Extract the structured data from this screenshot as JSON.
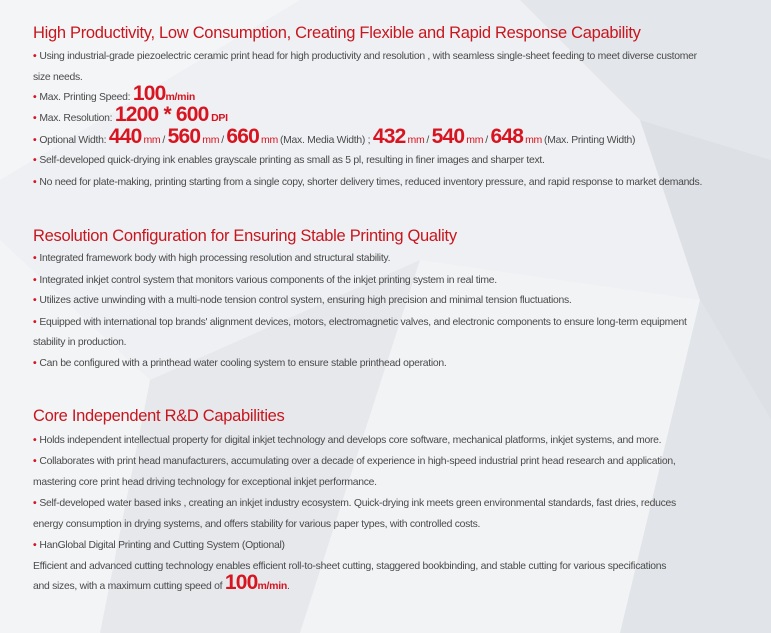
{
  "s1": {
    "title": "High Productivity, Low Consumption, Creating Flexible and Rapid Response Capability",
    "i1a": "Using industrial-grade piezoelectric ceramic print head for high productivity and  resolution , with seamless single-sheet feeding to meet diverse customer",
    "i1b": "size needs.",
    "speed_label": "Max. Printing Speed:",
    "speed_value": "100",
    "speed_unit": "m/min",
    "res_label": "Max. Resolution:",
    "res_value": "1200 * 600",
    "res_unit": "DPI",
    "width_label": "Optional Width:",
    "media_widths": [
      "440",
      "560",
      "660"
    ],
    "printing_widths": [
      "432",
      "540",
      "648"
    ],
    "mm": "mm",
    "slash": "/",
    "media_note": "(Max. Media Width) ;",
    "printing_note": "(Max. Printing Width)",
    "i5": "Self-developed quick-drying ink enables grayscale printing as small as 5 pl, resulting in finer images and sharper text.",
    "i6": "No need for plate-making, printing starting from a single copy, shorter delivery times, reduced inventory pressure, and rapid response to market demands."
  },
  "s2": {
    "title": "Resolution Configuration for Ensuring Stable Printing Quality",
    "i1": "Integrated framework body with high processing resolution and structural stability.",
    "i2": "Integrated inkjet control system that monitors various components of the inkjet printing system in real time.",
    "i3": "Utilizes active unwinding with a multi-node tension control system, ensuring high precision and minimal tension fluctuations.",
    "i4a": "Equipped with international top brands' alignment devices, motors, electromagnetic valves, and electronic components to ensure long-term equipment",
    "i4b": "stability in production.",
    "i5": "Can be configured with a printhead water cooling system to ensure stable printhead operation."
  },
  "s3": {
    "title": "Core Independent R&D Capabilities",
    "i1": "Holds independent intellectual property for digital inkjet technology and develops core software, mechanical platforms, inkjet systems, and more.",
    "i2a": "Collaborates with print head manufacturers, accumulating over a decade of experience in high-speed industrial print head research and application,",
    "i2b": "mastering core print head driving technology for exceptional inkjet performance.",
    "i3a": "Self-developed water based inks , creating an inkjet industry ecosystem. Quick-drying ink meets green environmental standards, fast dries, reduces",
    "i3b": "energy consumption in drying systems, and offers stability for various paper types, with controlled costs.",
    "i4": "HanGlobal Digital Printing and Cutting System (Optional)",
    "p1": "Efficient and advanced cutting technology enables efficient roll-to-sheet cutting, staggered bookbinding, and stable cutting for various specifications",
    "p2": "and sizes, with a maximum cutting speed of",
    "cut_value": "100",
    "cut_unit": "m/min",
    "period": "."
  },
  "bullet": "•",
  "colors": {
    "accent": "#d7141f",
    "heading": "#c8161e",
    "text": "#4a4a4a",
    "background": "#eef0f3"
  }
}
